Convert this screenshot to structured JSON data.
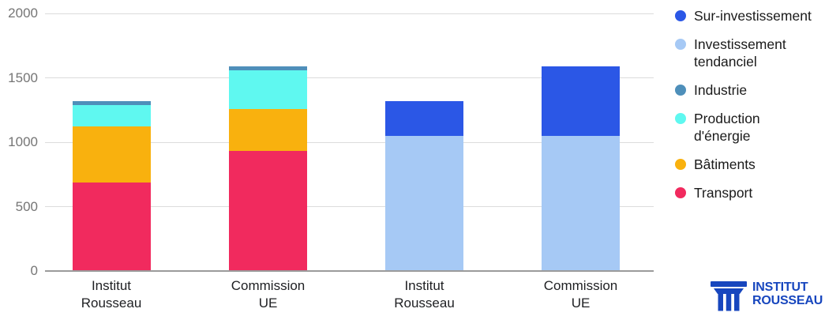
{
  "chart_data": {
    "type": "bar",
    "stacked": true,
    "title": "",
    "xlabel": "",
    "ylabel": "",
    "ylim": [
      0,
      2000
    ],
    "yticks": [
      0,
      500,
      1000,
      1500,
      2000
    ],
    "grid": true,
    "legend_position": "right",
    "categories": [
      "Institut Rousseau",
      "Commission UE",
      "Institut Rousseau",
      "Commission UE"
    ],
    "category_lines": [
      [
        "Institut",
        "Rousseau"
      ],
      [
        "Commission",
        "UE"
      ],
      [
        "Institut",
        "Rousseau"
      ],
      [
        "Commission",
        "UE"
      ]
    ],
    "series": [
      {
        "name": "Transport",
        "color": "#F12A5E",
        "values": [
          690,
          935,
          0,
          0
        ]
      },
      {
        "name": "Bâtiments",
        "color": "#F9B10E",
        "values": [
          430,
          320,
          0,
          0
        ]
      },
      {
        "name": "Production d'énergie",
        "color": "#5FF8F0",
        "values": [
          170,
          305,
          0,
          0
        ]
      },
      {
        "name": "Industrie",
        "color": "#4E8FBA",
        "values": [
          30,
          30,
          0,
          0
        ]
      },
      {
        "name": "Investissement tendanciel",
        "color": "#A6C9F5",
        "values": [
          0,
          0,
          1050,
          1050
        ]
      },
      {
        "name": "Sur-investissement",
        "color": "#2B57E6",
        "values": [
          0,
          0,
          270,
          540
        ]
      }
    ]
  },
  "legend": {
    "items": [
      {
        "label": "Sur-investissement",
        "lines": [
          "Sur-investissement"
        ],
        "color": "#2B57E6"
      },
      {
        "label": "Investissement tendanciel",
        "lines": [
          "Investissement",
          "tendanciel"
        ],
        "color": "#A6C9F5"
      },
      {
        "label": "Industrie",
        "lines": [
          "Industrie"
        ],
        "color": "#4E8FBA"
      },
      {
        "label": "Production d'énergie",
        "lines": [
          "Production",
          "d'énergie"
        ],
        "color": "#5FF8F0"
      },
      {
        "label": "Bâtiments",
        "lines": [
          "Bâtiments"
        ],
        "color": "#F9B10E"
      },
      {
        "label": "Transport",
        "lines": [
          "Transport"
        ],
        "color": "#F12A5E"
      }
    ]
  },
  "branding": {
    "name_line1": "INSTITUT",
    "name_line2": "ROUSSEAU",
    "logo_color": "#1746BE"
  },
  "colors": {
    "background": "#FFFFFF",
    "grid": "#DCDCDC",
    "axis_line": "#9B9B9B",
    "tick_label": "#757575",
    "category_label": "#202124",
    "legend_label": "#1A1A1A"
  }
}
